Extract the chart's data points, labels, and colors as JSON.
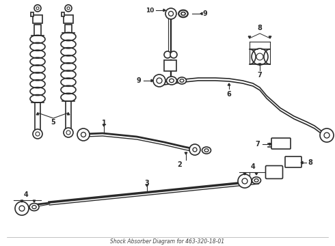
{
  "title": "Shock Absorber Diagram for 463-320-18-01",
  "bg_color": "#ffffff",
  "line_color": "#2a2a2a",
  "fig_width": 4.9,
  "fig_height": 3.6,
  "dpi": 100
}
